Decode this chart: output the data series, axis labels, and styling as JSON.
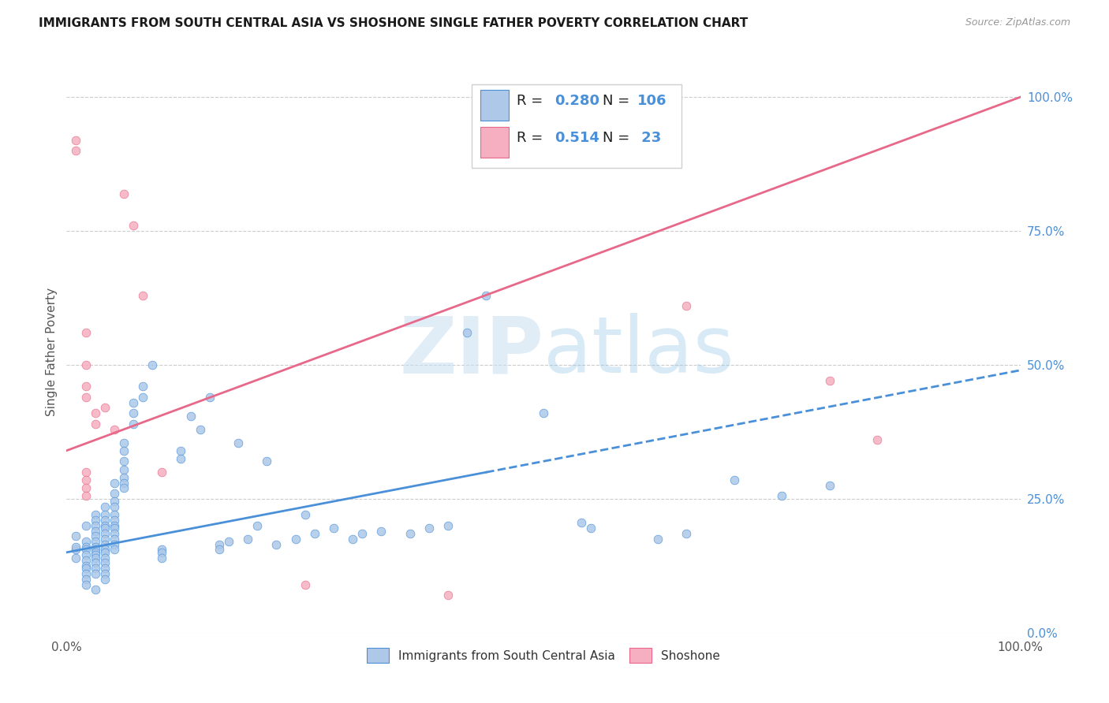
{
  "title": "IMMIGRANTS FROM SOUTH CENTRAL ASIA VS SHOSHONE SINGLE FATHER POVERTY CORRELATION CHART",
  "source": "Source: ZipAtlas.com",
  "ylabel": "Single Father Poverty",
  "legend_labels": [
    "Immigrants from South Central Asia",
    "Shoshone"
  ],
  "r_blue": 0.28,
  "n_blue": 106,
  "r_pink": 0.514,
  "n_pink": 23,
  "blue_color": "#adc8e8",
  "pink_color": "#f5afc0",
  "blue_line_color": "#4a90d9",
  "pink_line_color": "#e8688a",
  "watermark_color": "#cce4f5",
  "blue_points": [
    [
      0.1,
      15.5
    ],
    [
      0.1,
      18.0
    ],
    [
      0.1,
      16.0
    ],
    [
      0.1,
      14.0
    ],
    [
      0.2,
      20.0
    ],
    [
      0.2,
      17.0
    ],
    [
      0.2,
      16.0
    ],
    [
      0.2,
      15.5
    ],
    [
      0.2,
      14.5
    ],
    [
      0.2,
      13.5
    ],
    [
      0.2,
      12.5
    ],
    [
      0.2,
      12.0
    ],
    [
      0.2,
      11.0
    ],
    [
      0.2,
      10.0
    ],
    [
      0.2,
      9.0
    ],
    [
      0.3,
      22.0
    ],
    [
      0.3,
      21.0
    ],
    [
      0.3,
      20.0
    ],
    [
      0.3,
      19.0
    ],
    [
      0.3,
      18.0
    ],
    [
      0.3,
      17.0
    ],
    [
      0.3,
      16.0
    ],
    [
      0.3,
      15.5
    ],
    [
      0.3,
      15.0
    ],
    [
      0.3,
      14.5
    ],
    [
      0.3,
      14.0
    ],
    [
      0.3,
      13.0
    ],
    [
      0.3,
      12.0
    ],
    [
      0.3,
      11.0
    ],
    [
      0.3,
      8.0
    ],
    [
      0.4,
      23.5
    ],
    [
      0.4,
      22.0
    ],
    [
      0.4,
      21.0
    ],
    [
      0.4,
      20.0
    ],
    [
      0.4,
      19.5
    ],
    [
      0.4,
      18.5
    ],
    [
      0.4,
      17.5
    ],
    [
      0.4,
      16.5
    ],
    [
      0.4,
      15.5
    ],
    [
      0.4,
      15.0
    ],
    [
      0.4,
      14.0
    ],
    [
      0.4,
      13.0
    ],
    [
      0.4,
      12.0
    ],
    [
      0.4,
      11.0
    ],
    [
      0.4,
      10.0
    ],
    [
      0.5,
      28.0
    ],
    [
      0.5,
      26.0
    ],
    [
      0.5,
      24.5
    ],
    [
      0.5,
      23.5
    ],
    [
      0.5,
      22.0
    ],
    [
      0.5,
      21.0
    ],
    [
      0.5,
      20.0
    ],
    [
      0.5,
      19.5
    ],
    [
      0.5,
      18.5
    ],
    [
      0.5,
      17.5
    ],
    [
      0.5,
      16.5
    ],
    [
      0.5,
      15.5
    ],
    [
      0.6,
      35.5
    ],
    [
      0.6,
      34.0
    ],
    [
      0.6,
      32.0
    ],
    [
      0.6,
      30.5
    ],
    [
      0.6,
      29.0
    ],
    [
      0.6,
      28.0
    ],
    [
      0.6,
      27.0
    ],
    [
      0.7,
      43.0
    ],
    [
      0.7,
      41.0
    ],
    [
      0.7,
      39.0
    ],
    [
      0.8,
      46.0
    ],
    [
      0.8,
      44.0
    ],
    [
      0.9,
      50.0
    ],
    [
      1.0,
      15.5
    ],
    [
      1.0,
      15.0
    ],
    [
      1.0,
      14.0
    ],
    [
      1.2,
      34.0
    ],
    [
      1.2,
      32.5
    ],
    [
      1.3,
      40.5
    ],
    [
      1.4,
      38.0
    ],
    [
      1.5,
      44.0
    ],
    [
      1.6,
      16.5
    ],
    [
      1.6,
      15.5
    ],
    [
      1.7,
      17.0
    ],
    [
      1.8,
      35.5
    ],
    [
      1.9,
      17.5
    ],
    [
      2.0,
      20.0
    ],
    [
      2.1,
      32.0
    ],
    [
      2.2,
      16.5
    ],
    [
      2.4,
      17.5
    ],
    [
      2.5,
      22.0
    ],
    [
      2.6,
      18.5
    ],
    [
      2.8,
      19.5
    ],
    [
      3.0,
      17.5
    ],
    [
      3.1,
      18.5
    ],
    [
      3.3,
      19.0
    ],
    [
      3.6,
      18.5
    ],
    [
      3.8,
      19.5
    ],
    [
      4.0,
      20.0
    ],
    [
      4.2,
      56.0
    ],
    [
      4.4,
      63.0
    ],
    [
      5.0,
      41.0
    ],
    [
      5.4,
      20.5
    ],
    [
      5.5,
      19.5
    ],
    [
      6.2,
      17.5
    ],
    [
      6.5,
      18.5
    ],
    [
      7.0,
      28.5
    ],
    [
      7.5,
      25.5
    ],
    [
      8.0,
      27.5
    ]
  ],
  "pink_points": [
    [
      0.1,
      92.0
    ],
    [
      0.1,
      90.0
    ],
    [
      0.2,
      56.0
    ],
    [
      0.2,
      50.0
    ],
    [
      0.2,
      46.0
    ],
    [
      0.2,
      44.0
    ],
    [
      0.2,
      30.0
    ],
    [
      0.2,
      28.5
    ],
    [
      0.2,
      27.0
    ],
    [
      0.2,
      25.5
    ],
    [
      0.3,
      41.0
    ],
    [
      0.3,
      39.0
    ],
    [
      0.4,
      42.0
    ],
    [
      0.5,
      38.0
    ],
    [
      0.6,
      82.0
    ],
    [
      0.7,
      76.0
    ],
    [
      0.8,
      63.0
    ],
    [
      1.0,
      30.0
    ],
    [
      2.5,
      9.0
    ],
    [
      4.0,
      7.0
    ],
    [
      6.5,
      61.0
    ],
    [
      8.0,
      47.0
    ],
    [
      8.5,
      36.0
    ]
  ],
  "blue_trendline": [
    [
      0.0,
      15.0
    ],
    [
      10.0,
      49.0
    ]
  ],
  "pink_trendline": [
    [
      0.0,
      34.0
    ],
    [
      10.0,
      100.0
    ]
  ],
  "blue_solid_end": 4.4,
  "xlim": [
    0,
    10.0
  ],
  "ylim": [
    0,
    105.0
  ],
  "yticks": [
    0,
    25,
    50,
    75,
    100
  ],
  "yticklabels": [
    "0.0%",
    "25.0%",
    "50.0%",
    "75.0%",
    "100.0%"
  ],
  "xtick_positions": [
    0,
    10.0
  ],
  "xtick_labels": [
    "0.0%",
    "100.0%"
  ]
}
